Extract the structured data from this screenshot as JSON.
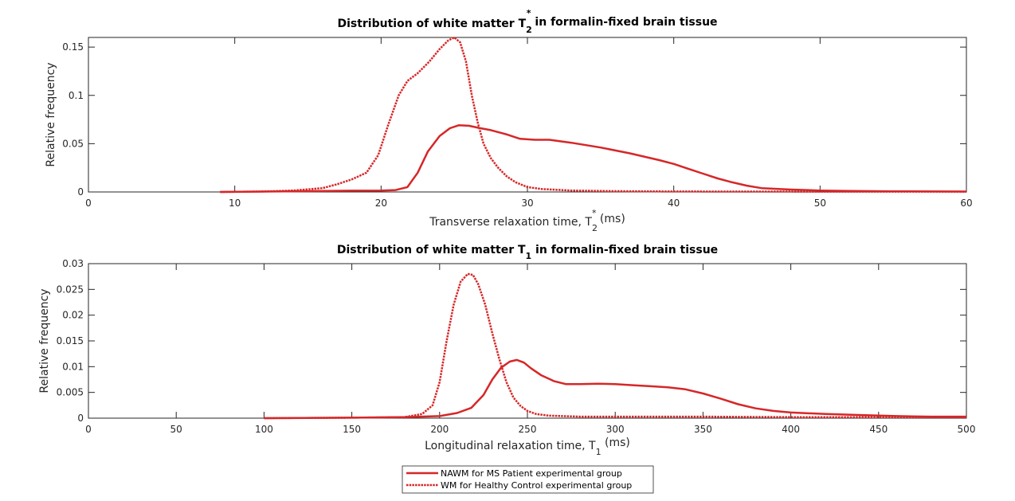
{
  "chart_data": [
    {
      "type": "line",
      "title": {
        "prefix": "Distribution of white matter T",
        "sub": "2",
        "sup": "*",
        "suffix": " in formalin-fixed brain tissue"
      },
      "xlabel": {
        "prefix": "Transverse relaxation time, T",
        "sub": "2",
        "sup": "*",
        "suffix": " (ms)"
      },
      "ylabel": "Relative frequency",
      "xlim": [
        0,
        60
      ],
      "ylim": [
        0,
        0.16
      ],
      "xticks": [
        0,
        10,
        20,
        30,
        40,
        50,
        60
      ],
      "yticks": [
        0,
        0.05,
        0.1,
        0.15
      ],
      "ytick_labels": [
        "0",
        "0.05",
        "0.1",
        "0.15"
      ],
      "grid": false,
      "series": [
        {
          "style": "solid",
          "x": [
            9,
            12,
            15,
            18,
            20,
            21,
            21.8,
            22.5,
            23.2,
            24,
            24.7,
            25.3,
            26,
            26.8,
            27.5,
            28.5,
            29.5,
            30.5,
            31.5,
            33,
            35,
            37,
            39,
            40,
            41,
            42,
            43,
            44,
            45,
            46,
            48,
            50,
            52,
            55,
            58,
            60
          ],
          "y": [
            0,
            0.0004,
            0.0008,
            0.0013,
            0.0015,
            0.002,
            0.005,
            0.02,
            0.042,
            0.058,
            0.066,
            0.069,
            0.0685,
            0.066,
            0.064,
            0.06,
            0.055,
            0.054,
            0.054,
            0.051,
            0.046,
            0.04,
            0.033,
            0.029,
            0.024,
            0.019,
            0.014,
            0.01,
            0.0065,
            0.004,
            0.0025,
            0.0015,
            0.001,
            0.0007,
            0.0005,
            0.0004
          ]
        },
        {
          "style": "dotted",
          "x": [
            9,
            12,
            14,
            16,
            17,
            18,
            19,
            19.8,
            20.5,
            21.2,
            21.8,
            22.5,
            23.3,
            24,
            24.6,
            25,
            25.4,
            25.8,
            26.2,
            26.6,
            27,
            27.5,
            28,
            28.6,
            29.2,
            30,
            31,
            33,
            36,
            40,
            45,
            50,
            55,
            60
          ],
          "y": [
            0,
            0.0005,
            0.0015,
            0.004,
            0.008,
            0.013,
            0.02,
            0.038,
            0.07,
            0.1,
            0.115,
            0.123,
            0.135,
            0.148,
            0.157,
            0.16,
            0.155,
            0.135,
            0.1,
            0.072,
            0.05,
            0.035,
            0.025,
            0.016,
            0.01,
            0.005,
            0.003,
            0.0015,
            0.0008,
            0.0005,
            0.0004,
            0.0003,
            0.0003,
            0.0003
          ]
        }
      ]
    },
    {
      "type": "line",
      "title": {
        "prefix": "Distribution of white matter T",
        "sub": "1",
        "sup": "",
        "suffix": " in formalin-fixed brain tissue"
      },
      "xlabel": {
        "prefix": "Longitudinal relaxation time, T",
        "sub": "1",
        "sup": "",
        "suffix": " (ms)"
      },
      "ylabel": "Relative frequency",
      "xlim": [
        0,
        500
      ],
      "ylim": [
        0,
        0.03
      ],
      "xticks": [
        0,
        50,
        100,
        150,
        200,
        250,
        300,
        350,
        400,
        450,
        500
      ],
      "yticks": [
        0,
        0.005,
        0.01,
        0.015,
        0.02,
        0.025,
        0.03
      ],
      "ytick_labels": [
        "0",
        "0.005",
        "0.01",
        "0.015",
        "0.02",
        "0.025",
        "0.03"
      ],
      "grid": false,
      "series": [
        {
          "style": "solid",
          "x": [
            100,
            150,
            180,
            200,
            210,
            218,
            225,
            230,
            235,
            240,
            244,
            248,
            252,
            258,
            265,
            272,
            280,
            290,
            300,
            310,
            320,
            330,
            340,
            350,
            360,
            370,
            380,
            390,
            400,
            420,
            440,
            460,
            480,
            500
          ],
          "y": [
            0,
            0.0001,
            0.0002,
            0.0004,
            0.001,
            0.002,
            0.0045,
            0.0075,
            0.0098,
            0.011,
            0.0113,
            0.0108,
            0.0097,
            0.0083,
            0.0072,
            0.0066,
            0.0066,
            0.0067,
            0.0066,
            0.0064,
            0.0062,
            0.006,
            0.0056,
            0.0048,
            0.0038,
            0.0027,
            0.0019,
            0.0014,
            0.0011,
            0.0008,
            0.0006,
            0.0004,
            0.0003,
            0.0003
          ]
        },
        {
          "style": "dotted",
          "x": [
            100,
            150,
            180,
            190,
            196,
            200,
            204,
            208,
            212,
            216,
            219,
            222,
            226,
            230,
            234,
            238,
            242,
            246,
            250,
            255,
            262,
            270,
            280,
            300,
            350,
            400,
            450,
            500
          ],
          "y": [
            0,
            0.0001,
            0.0002,
            0.0008,
            0.0025,
            0.007,
            0.015,
            0.022,
            0.0265,
            0.028,
            0.0278,
            0.026,
            0.022,
            0.0165,
            0.0115,
            0.007,
            0.004,
            0.0024,
            0.0014,
            0.0008,
            0.0005,
            0.0004,
            0.0003,
            0.0003,
            0.0003,
            0.0002,
            0.0002,
            0.0002
          ]
        }
      ]
    }
  ],
  "legend": {
    "placement": "bottom-center",
    "entries": [
      {
        "label": "NAWM for MS Patient experimental group",
        "style": "solid"
      },
      {
        "label": "WM for Healthy Control experimental group",
        "style": "dotted"
      }
    ]
  },
  "colors": {
    "series": "#d62728",
    "axes": "#262626",
    "background": "#ffffff"
  }
}
